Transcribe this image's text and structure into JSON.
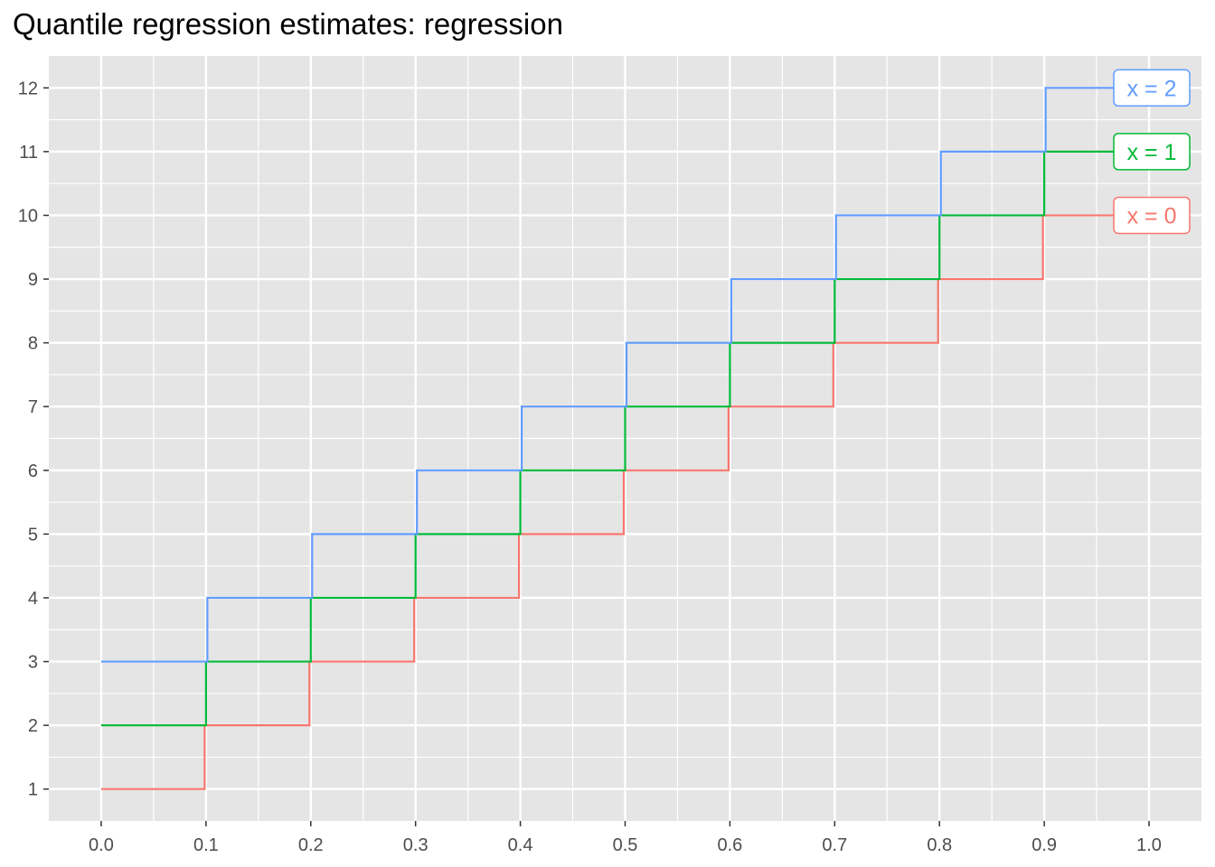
{
  "chart_data": {
    "type": "line",
    "title": "Quantile regression estimates: regression",
    "xlabel": "",
    "ylabel": "",
    "xlim": [
      -0.05,
      1.05
    ],
    "ylim": [
      0.5,
      12.5
    ],
    "x_ticks": [
      "0.0",
      "0.1",
      "0.2",
      "0.3",
      "0.4",
      "0.5",
      "0.6",
      "0.7",
      "0.8",
      "0.9",
      "1.0"
    ],
    "y_ticks": [
      "1",
      "2",
      "3",
      "4",
      "5",
      "6",
      "7",
      "8",
      "9",
      "10",
      "11",
      "12"
    ],
    "grid": true,
    "step": true,
    "x": [
      0.0,
      0.1,
      0.2,
      0.3,
      0.4,
      0.5,
      0.6,
      0.7,
      0.8,
      0.9,
      1.0
    ],
    "series": [
      {
        "label": "x = 0",
        "color": "#F8766D",
        "values": [
          1,
          2,
          3,
          4,
          5,
          6,
          7,
          8,
          9,
          10,
          10
        ]
      },
      {
        "label": "x = 1",
        "color": "#00BA38",
        "values": [
          2,
          3,
          4,
          5,
          6,
          7,
          8,
          9,
          10,
          11,
          11
        ]
      },
      {
        "label": "x = 2",
        "color": "#619CFF",
        "values": [
          3,
          4,
          5,
          6,
          7,
          8,
          9,
          10,
          11,
          12,
          12
        ]
      }
    ],
    "colors": {
      "panel": "#E5E5E5",
      "grid": "#FFFFFF",
      "axis_text": "#4D4D4D"
    }
  }
}
